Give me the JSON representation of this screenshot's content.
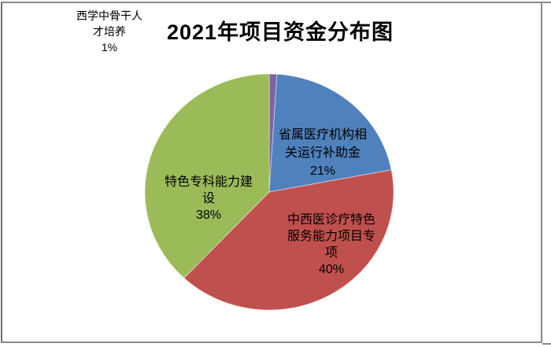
{
  "title": "2021年项目资金分布图",
  "chart_data": {
    "type": "pie",
    "title": "2021年项目资金分布图",
    "start_angle_deg": 0,
    "direction": "clockwise",
    "legend": "none",
    "slices": [
      {
        "label": "西学中骨干人才培养",
        "value_pct": 1,
        "color": "#8064A2",
        "label_text": "西学中骨干人\n才培养\n1%",
        "label_position": "outside-top-left"
      },
      {
        "label": "省属医疗机构相关运行补助金",
        "value_pct": 21,
        "color": "#4F81BD",
        "label_text": "省属医疗机构相\n关运行补助金\n21%",
        "label_position": "inside"
      },
      {
        "label": "中西医诊疗特色服务能力项目专项",
        "value_pct": 40,
        "color": "#C0504D",
        "label_text": "中西医诊疗特色\n服务能力项目专\n项\n40%",
        "label_position": "inside"
      },
      {
        "label": "特色专科能力建设",
        "value_pct": 38,
        "color": "#9BBB59",
        "label_text": "特色专科能力建\n设\n38%",
        "label_position": "inside"
      }
    ]
  },
  "frame": {
    "border_color": "#8a8a8a"
  }
}
